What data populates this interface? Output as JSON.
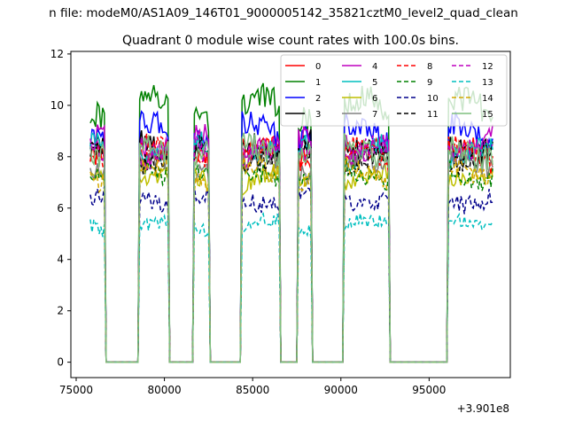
{
  "figure": {
    "suptitle": "n file: modeM0/AS1A09_146T01_9000005142_35821cztM0_level2_quad_clean"
  },
  "chart_data": {
    "type": "line",
    "title": "Quadrant 0 module wise count rates with 100.0s bins.",
    "xlabel": "",
    "ylabel": "",
    "x_offset_label": "+3.901e8",
    "xlim": [
      74700,
      99600
    ],
    "ylim": [
      -0.6,
      12.1
    ],
    "x_ticks": [
      75000,
      80000,
      85000,
      90000,
      95000
    ],
    "x_tick_labels": [
      "75000",
      "80000",
      "85000",
      "90000",
      "95000"
    ],
    "y_ticks": [
      0,
      2,
      4,
      6,
      8,
      10,
      12
    ],
    "y_tick_labels": [
      "0",
      "2",
      "4",
      "6",
      "8",
      "10",
      "12"
    ],
    "grid": false,
    "legend": {
      "placement": "top-right",
      "columns": 4
    },
    "bin_seconds": 100,
    "x_start": 75800,
    "x_end": 98600,
    "gti_on_intervals": [
      [
        75800,
        76600
      ],
      [
        78600,
        80200
      ],
      [
        81700,
        82500
      ],
      [
        84400,
        86500
      ],
      [
        87600,
        88300
      ],
      [
        90200,
        92700
      ],
      [
        96100,
        98600
      ]
    ],
    "series": [
      {
        "name": "0",
        "color": "#ff0000",
        "dash": "solid",
        "level": 8.0
      },
      {
        "name": "1",
        "color": "#008000",
        "dash": "solid",
        "level": 9.9
      },
      {
        "name": "2",
        "color": "#0000ff",
        "dash": "solid",
        "level": 9.0
      },
      {
        "name": "3",
        "color": "#000000",
        "dash": "solid",
        "level": 8.5
      },
      {
        "name": "4",
        "color": "#bf00bf",
        "dash": "solid",
        "level": 8.6
      },
      {
        "name": "5",
        "color": "#00bfbf",
        "dash": "solid",
        "level": 8.2
      },
      {
        "name": "6",
        "color": "#bfbf00",
        "dash": "solid",
        "level": 7.1
      },
      {
        "name": "7",
        "color": "#808080",
        "dash": "solid",
        "level": 7.6
      },
      {
        "name": "8",
        "color": "#ff0000",
        "dash": "dashed",
        "level": 8.1
      },
      {
        "name": "9",
        "color": "#008000",
        "dash": "dashed",
        "level": 7.4
      },
      {
        "name": "10",
        "color": "#00008b",
        "dash": "dashed",
        "level": 6.4
      },
      {
        "name": "11",
        "color": "#000000",
        "dash": "dashed",
        "level": 8.0
      },
      {
        "name": "12",
        "color": "#bf00bf",
        "dash": "dashed",
        "level": 8.1
      },
      {
        "name": "13",
        "color": "#00bfbf",
        "dash": "dashed",
        "level": 5.3
      },
      {
        "name": "14",
        "color": "#d4a800",
        "dash": "dashed",
        "level": 7.3
      },
      {
        "name": "15",
        "color": "#7fbf7f",
        "dash": "solid",
        "level": 8.3
      }
    ]
  }
}
